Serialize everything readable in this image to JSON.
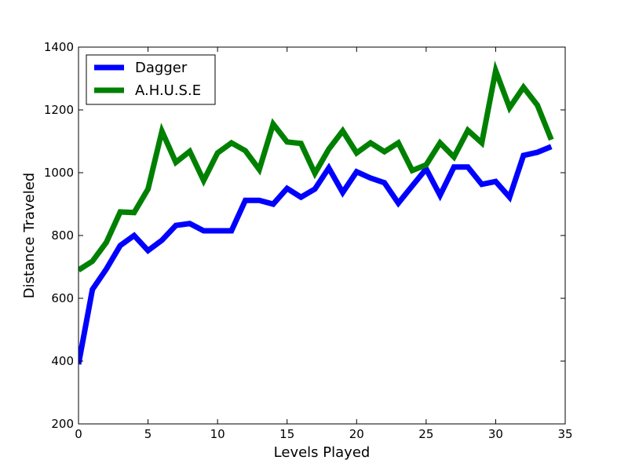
{
  "chart_data": {
    "type": "line",
    "title": "",
    "xlabel": "Levels Played",
    "ylabel": "Distance Traveled",
    "xlim": [
      0,
      35
    ],
    "ylim": [
      200,
      1400
    ],
    "xticks": [
      0,
      5,
      10,
      15,
      20,
      25,
      30,
      35
    ],
    "yticks": [
      200,
      400,
      600,
      800,
      1000,
      1200,
      1400
    ],
    "grid": false,
    "legend_position": "upper-left",
    "x": [
      0,
      1,
      2,
      3,
      4,
      5,
      6,
      7,
      8,
      9,
      10,
      11,
      12,
      13,
      14,
      15,
      16,
      17,
      18,
      19,
      20,
      21,
      22,
      23,
      24,
      25,
      26,
      27,
      28,
      29,
      30,
      31,
      32,
      33,
      34
    ],
    "series": [
      {
        "name": "Dagger",
        "color": "#0000ff",
        "values": [
          390,
          628,
          693,
          768,
          800,
          752,
          785,
          832,
          838,
          815,
          815,
          815,
          912,
          912,
          900,
          950,
          922,
          948,
          1015,
          937,
          1003,
          983,
          968,
          903,
          958,
          1012,
          928,
          1018,
          1018,
          963,
          972,
          922,
          1055,
          1065,
          1083
        ]
      },
      {
        "name": "A.H.U.S.E",
        "color": "#008000",
        "values": [
          690,
          718,
          778,
          875,
          873,
          948,
          1132,
          1033,
          1068,
          975,
          1063,
          1095,
          1070,
          1010,
          1155,
          1098,
          1093,
          998,
          1075,
          1133,
          1063,
          1095,
          1067,
          1095,
          1007,
          1025,
          1095,
          1050,
          1135,
          1095,
          1325,
          1207,
          1272,
          1215,
          1105
        ]
      }
    ]
  }
}
